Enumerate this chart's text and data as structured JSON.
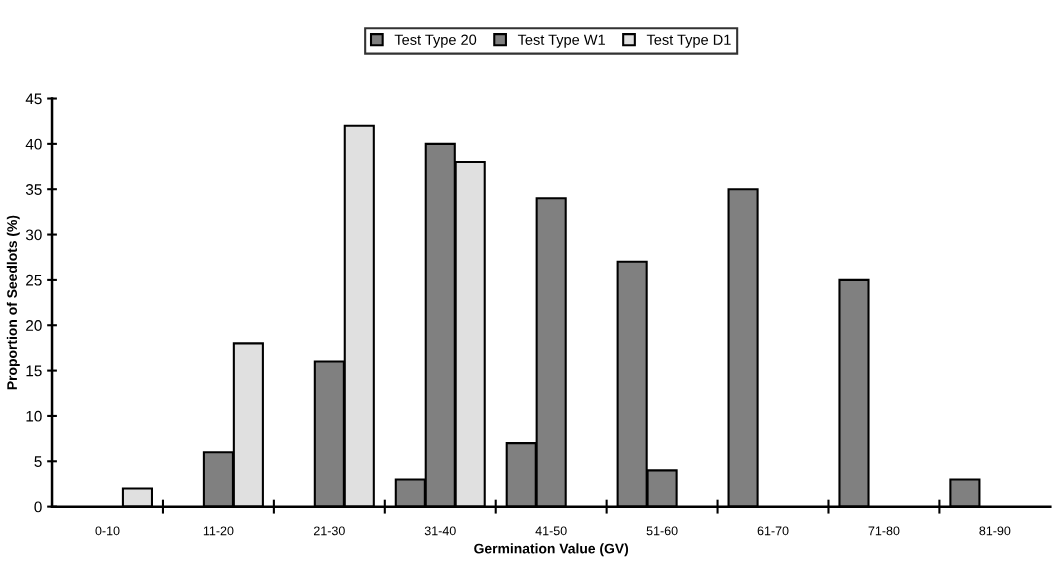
{
  "chart_data": {
    "type": "bar",
    "xlabel": "Germination Value (GV)",
    "ylabel": "Proportion of Seedlots (%)",
    "categories": [
      "0-10",
      "11-20",
      "21-30",
      "31-40",
      "41-50",
      "51-60",
      "61-70",
      "71-80",
      "81-90"
    ],
    "series": [
      {
        "name": "Test Type 20",
        "color": "#808080",
        "values": [
          null,
          null,
          null,
          3,
          7,
          27,
          35,
          25,
          3
        ]
      },
      {
        "name": "Test Type W1",
        "color": "#808080",
        "values": [
          null,
          6,
          16,
          40,
          34,
          4,
          null,
          null,
          null
        ]
      },
      {
        "name": "Test Type D1",
        "color": "#e0e0e0",
        "values": [
          2,
          18,
          42,
          38,
          null,
          null,
          null,
          null,
          null
        ]
      }
    ],
    "ylim": [
      0,
      45
    ],
    "yticks": [
      0,
      5,
      10,
      15,
      20,
      25,
      30,
      35,
      40,
      45
    ],
    "grid": false,
    "legend": "top"
  }
}
